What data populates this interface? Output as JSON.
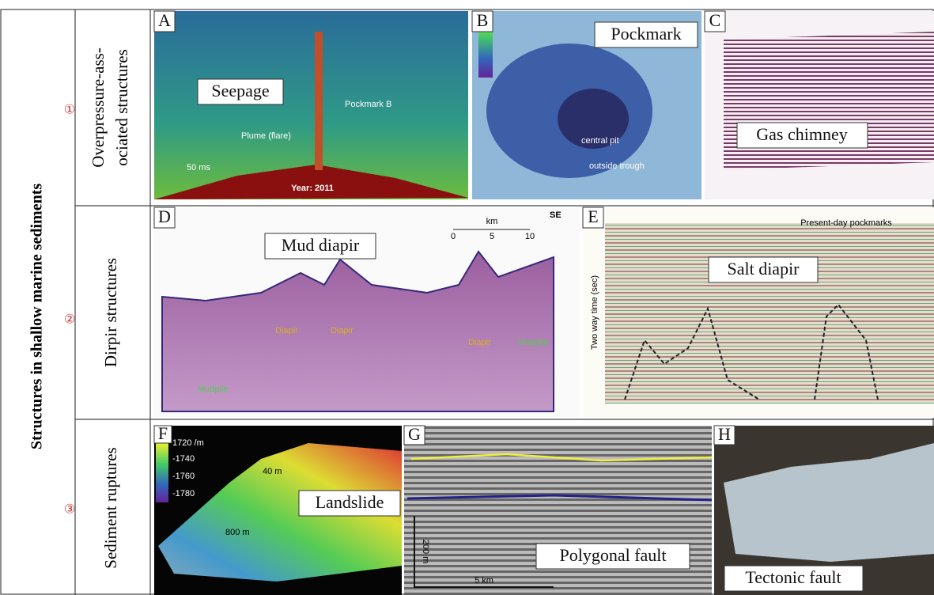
{
  "main_label": "Structures in shallow marine sediments",
  "rows": [
    {
      "number": "①",
      "title": [
        "Overpressure-ass-",
        "ociated structures"
      ],
      "panels": [
        {
          "letter": "A",
          "label": "Seepage",
          "notes": [
            "Plume (flare)",
            "Pockmark B",
            "Year: 2011",
            "50 ms"
          ]
        },
        {
          "letter": "B",
          "label": "Pockmark",
          "notes": [
            "central pit",
            "outside trough"
          ]
        },
        {
          "letter": "C",
          "label": "Gas chimney",
          "notes": []
        }
      ]
    },
    {
      "number": "②",
      "title": [
        "Dirpir structures"
      ],
      "panels": [
        {
          "letter": "D",
          "label": "Mud diapir",
          "notes": [
            "km",
            "SE",
            "0",
            "5",
            "10",
            "Diapir",
            "Diapir",
            "Diapir",
            "Mudpile",
            "Mudpile"
          ]
        },
        {
          "letter": "E",
          "label": "Salt diapir",
          "notes": [
            "Present-day pockmarks",
            "Two way time (sec)"
          ]
        }
      ]
    },
    {
      "number": "③",
      "title": [
        "Sediment ruptures"
      ],
      "panels": [
        {
          "letter": "F",
          "label": "Landslide",
          "notes": [
            "1720 /m",
            "-1740",
            "-1760",
            "-1780",
            "40 m",
            "800 m"
          ]
        },
        {
          "letter": "G",
          "label": "Polygonal fault",
          "notes": [
            "200 m",
            "5 km"
          ]
        },
        {
          "letter": "H",
          "label": "Tectonic fault",
          "notes": []
        }
      ]
    }
  ]
}
